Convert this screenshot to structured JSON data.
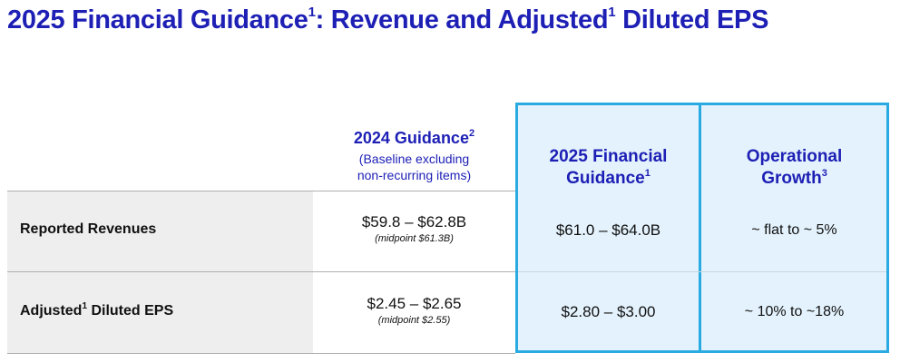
{
  "title": {
    "part1": "2025 Financial Guidance",
    "sup1": "1",
    "part2": ": Revenue and Adjusted",
    "sup2": "1",
    "part3": " Diluted EPS"
  },
  "columns": {
    "guidance_2024": {
      "heading": "2024 Guidance",
      "sup": "2",
      "sub_line1": "(Baseline excluding",
      "sub_line2": "non-recurring items)"
    },
    "guidance_2025": {
      "line1": "2025 Financial",
      "line2": "Guidance",
      "sup": "1"
    },
    "growth": {
      "line1": "Operational",
      "line2": "Growth",
      "sup": "3"
    }
  },
  "rows": [
    {
      "label": "Reported Revenues",
      "label_sup": "",
      "label_tail": "",
      "guidance_2024": "$59.8 – $62.8B",
      "midpoint_2024": "(midpoint $61.3B)",
      "guidance_2025": "$61.0 – $64.0B",
      "growth": "~ flat to ~ 5%"
    },
    {
      "label": "Adjusted",
      "label_sup": "1",
      "label_tail": " Diluted EPS",
      "guidance_2024": "$2.45 – $2.65",
      "midpoint_2024": "(midpoint $2.55)",
      "guidance_2025": "$2.80 – $3.00",
      "growth": "~ 10% to ~18%"
    }
  ],
  "colors": {
    "title": "#1d1fb5",
    "highlight_fill": "#e3f2fc",
    "highlight_border": "#29abe2",
    "label_band": "#eeeeee"
  }
}
